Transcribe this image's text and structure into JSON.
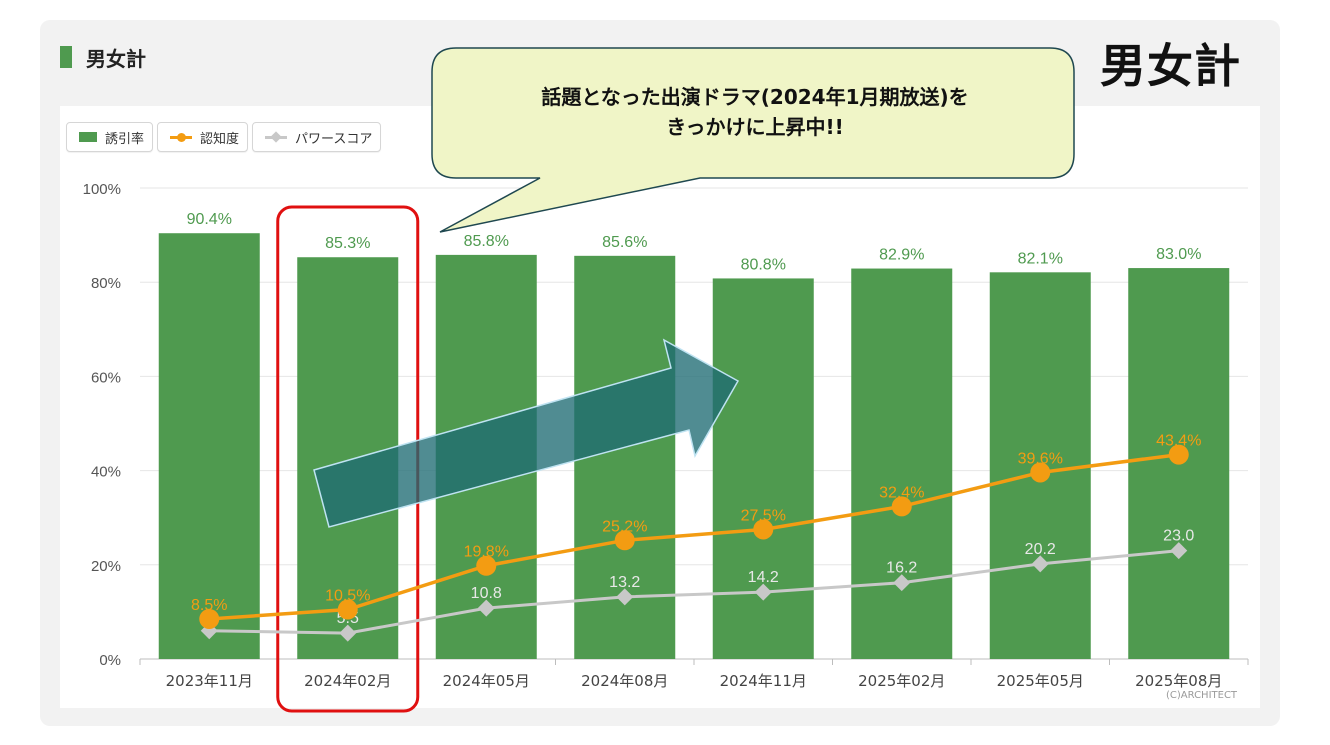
{
  "panel_title": "男女計",
  "big_title": "男女計",
  "callout": {
    "line1": "話題となった出演ドラマ(2024年1月期放送)を",
    "line2": "きっかけに上昇中!!"
  },
  "legend": {
    "bar": "誘引率",
    "awareness": "認知度",
    "power": "パワースコア"
  },
  "copyright": "(C)ARCHITECT",
  "colors": {
    "bar": "#4f9a4f",
    "awareness": "#f39c12",
    "power": "#c8c8c8",
    "highlight": "#e01010",
    "arrow": "#1f6b73"
  },
  "chart_data": {
    "type": "bar",
    "categories": [
      "2023年11月",
      "2024年02月",
      "2024年05月",
      "2024年08月",
      "2024年11月",
      "2025年02月",
      "2025年05月",
      "2025年08月"
    ],
    "series": [
      {
        "name": "誘引率",
        "type": "bar",
        "values": [
          90.4,
          85.3,
          85.8,
          85.6,
          80.8,
          82.9,
          82.1,
          83.0
        ],
        "labels": [
          "90.4%",
          "85.3%",
          "85.8%",
          "85.6%",
          "80.8%",
          "82.9%",
          "82.1%",
          "83.0%"
        ]
      },
      {
        "name": "認知度",
        "type": "line",
        "values": [
          8.5,
          10.5,
          19.8,
          25.2,
          27.5,
          32.4,
          39.6,
          43.4
        ],
        "labels": [
          "8.5%",
          "10.5%",
          "19.8%",
          "25.2%",
          "27.5%",
          "32.4%",
          "39.6%",
          "43.4%"
        ]
      },
      {
        "name": "パワースコア",
        "type": "line",
        "values": [
          6.0,
          5.5,
          10.8,
          13.2,
          14.2,
          16.2,
          20.2,
          23.0
        ],
        "labels": [
          "",
          "5.5",
          "10.8",
          "13.2",
          "14.2",
          "16.2",
          "20.2",
          "23.0"
        ]
      }
    ],
    "yticks": [
      "0%",
      "20%",
      "40%",
      "60%",
      "80%",
      "100%"
    ],
    "ylim": [
      0,
      100
    ],
    "highlight_category": "2024年02月",
    "legend_position": "top-left",
    "grid": true
  }
}
